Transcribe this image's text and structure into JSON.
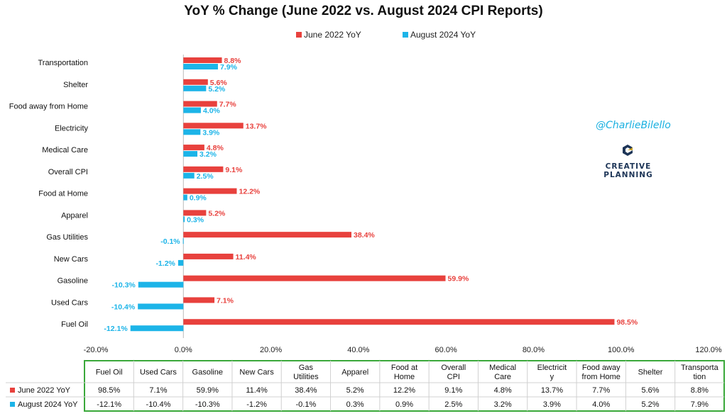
{
  "chart_data": {
    "type": "bar",
    "orientation": "horizontal",
    "title": "YoY % Change (June 2022 vs. August 2024 CPI Reports)",
    "categories": [
      "Fuel Oil",
      "Used Cars",
      "Gasoline",
      "New Cars",
      "Gas Utilities",
      "Apparel",
      "Food at Home",
      "Overall CPI",
      "Medical Care",
      "Electricity",
      "Food away from Home",
      "Shelter",
      "Transportation"
    ],
    "series": [
      {
        "name": "June 2022 YoY",
        "color": "#e8413d",
        "values": [
          98.5,
          7.1,
          59.9,
          11.4,
          38.4,
          5.2,
          12.2,
          9.1,
          4.8,
          13.7,
          7.7,
          5.6,
          8.8
        ],
        "labels": [
          "98.5%",
          "7.1%",
          "59.9%",
          "11.4%",
          "38.4%",
          "5.2%",
          "12.2%",
          "9.1%",
          "4.8%",
          "13.7%",
          "7.7%",
          "5.6%",
          "8.8%"
        ]
      },
      {
        "name": "August 2024 YoY",
        "color": "#1cb4e8",
        "values": [
          -12.1,
          -10.4,
          -10.3,
          -1.2,
          -0.1,
          0.3,
          0.9,
          2.5,
          3.2,
          3.9,
          4.0,
          5.2,
          7.9
        ],
        "labels": [
          "-12.1%",
          "-10.4%",
          "-10.3%",
          "-1.2%",
          "-0.1%",
          "0.3%",
          "0.9%",
          "2.5%",
          "3.2%",
          "3.9%",
          "4.0%",
          "5.2%",
          "7.9%"
        ]
      }
    ],
    "xlim": [
      -20,
      120
    ],
    "xticks": [
      -20,
      0,
      20,
      40,
      60,
      80,
      100,
      120
    ],
    "xtick_labels": [
      "-20.0%",
      "0.0%",
      "20.0%",
      "40.0%",
      "60.0%",
      "80.0%",
      "100.0%",
      "120.0%"
    ],
    "legend_position": "top",
    "table": {
      "headers": [
        "Fuel Oil",
        "Used Cars",
        "Gasoline",
        "New Cars",
        "Gas Utilities",
        "Apparel",
        "Food at Home",
        "Overall CPI",
        "Medical Care",
        "Electricity",
        "Food away from Home",
        "Shelter",
        "Transportation"
      ],
      "rows": [
        {
          "name": "June 2022 YoY",
          "values": [
            "98.5%",
            "7.1%",
            "59.9%",
            "11.4%",
            "38.4%",
            "5.2%",
            "12.2%",
            "9.1%",
            "4.8%",
            "13.7%",
            "7.7%",
            "5.6%",
            "8.8%"
          ]
        },
        {
          "name": "August 2024 YoY",
          "values": [
            "-12.1%",
            "-10.4%",
            "-10.3%",
            "-1.2%",
            "-0.1%",
            "0.3%",
            "0.9%",
            "2.5%",
            "3.2%",
            "3.9%",
            "4.0%",
            "5.2%",
            "7.9%"
          ]
        }
      ]
    }
  },
  "watermark": "@CharlieBilello",
  "brand": {
    "line1": "CREATIVE",
    "line2": "PLANNING"
  },
  "colors": {
    "table_border": "#3aa83a",
    "axis": "#bbbbbb"
  }
}
